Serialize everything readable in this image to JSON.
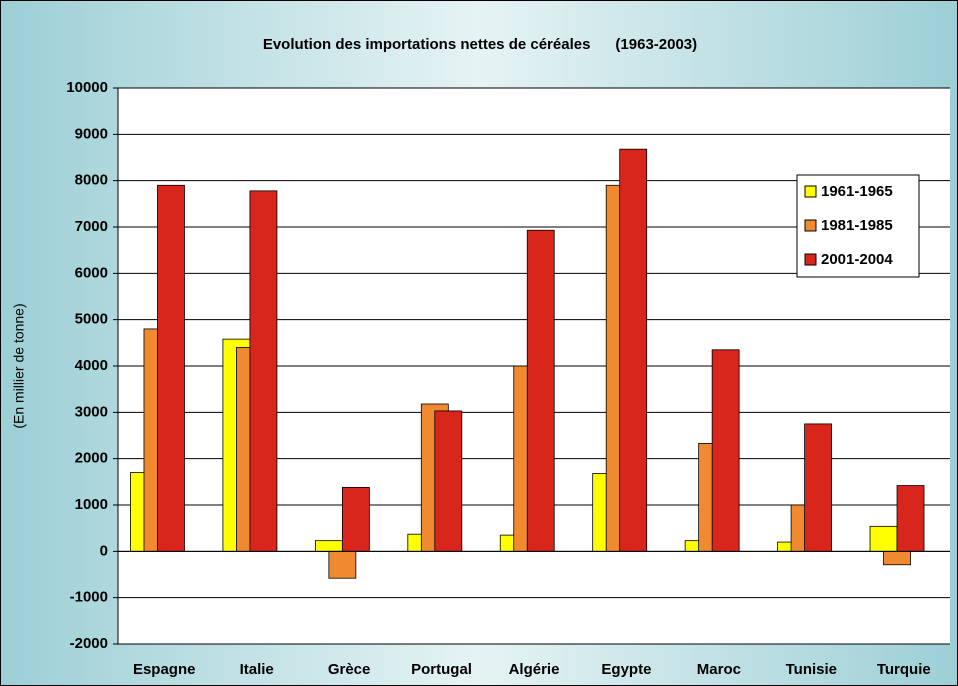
{
  "chart_data": {
    "type": "bar",
    "title": "Evolution des importations nettes de céréales      (1963-2003)",
    "y_label": "(En millier de tonne)",
    "categories": [
      "Espagne",
      "Italie",
      "Grèce",
      "Portugal",
      "Algérie",
      "Egypte",
      "Maroc",
      "Tunisie",
      "Turquie"
    ],
    "series": [
      {
        "name": "1961-1965",
        "color": "#ffff00",
        "values": [
          1700,
          4580,
          230,
          370,
          350,
          1680,
          230,
          200,
          540
        ]
      },
      {
        "name": "1981-1985",
        "color": "#f08a30",
        "values": [
          4800,
          4400,
          -580,
          3180,
          4000,
          7900,
          2330,
          1000,
          -290
        ]
      },
      {
        "name": "2001-2004",
        "color": "#d9261c",
        "values": [
          7900,
          7780,
          1380,
          3030,
          6930,
          8680,
          4350,
          2750,
          1420
        ]
      }
    ],
    "ylim": [
      -2000,
      10000
    ],
    "yticks": [
      -2000,
      -1000,
      0,
      1000,
      2000,
      3000,
      4000,
      5000,
      6000,
      7000,
      8000,
      9000,
      10000
    ],
    "grid": true,
    "legend": "right"
  }
}
